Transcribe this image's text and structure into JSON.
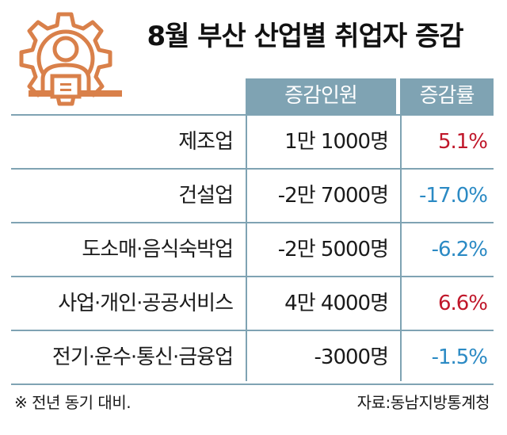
{
  "title": "8월 부산 산업별 취업자 증감",
  "header": {
    "count_label": "증감인원",
    "rate_label": "증감률"
  },
  "colors": {
    "header_bg": "#7fa3b3",
    "positive": "#c0172a",
    "negative": "#2b8ac4",
    "icon": "#d9804a"
  },
  "icon": "worker-gear-icon",
  "rows": [
    {
      "category": "제조업",
      "count": "1만 1000명",
      "rate": "5.1%"
    },
    {
      "category": "건설업",
      "count": "-2만 7000명",
      "rate": "-17.0%"
    },
    {
      "category": "도소매·음식숙박업",
      "count": "-2만 5000명",
      "rate": "-6.2%"
    },
    {
      "category": "사업·개인·공공서비스",
      "count": "4만 4000명",
      "rate": "6.6%"
    },
    {
      "category": "전기·운수·통신·금융업",
      "count": "-3000명",
      "rate": "-1.5%"
    }
  ],
  "footer": {
    "note": "※ 전년 동기 대비.",
    "source": "자료:동남지방통계청"
  },
  "chart_data": {
    "type": "table",
    "title": "8월 부산 산업별 취업자 증감",
    "columns": [
      "증감인원",
      "증감률"
    ],
    "categories": [
      "제조업",
      "건설업",
      "도소매·음식숙박업",
      "사업·개인·공공서비스",
      "전기·운수·통신·금융업"
    ],
    "series": [
      {
        "name": "증감인원",
        "values": [
          11000,
          -27000,
          -25000,
          44000,
          -3000
        ]
      },
      {
        "name": "증감률",
        "values": [
          5.1,
          -17.0,
          -6.2,
          6.6,
          -1.5
        ]
      }
    ]
  }
}
